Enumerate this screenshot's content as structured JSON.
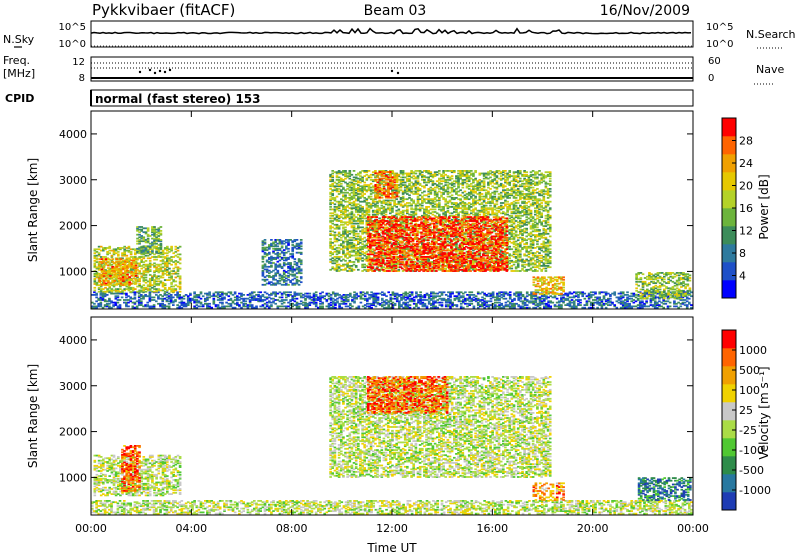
{
  "header": {
    "station": "Pykkvibaer (fitACF)",
    "beam": "Beam 03",
    "date": "16/Nov/2009"
  },
  "strips": {
    "nsky_label": "N.Sky",
    "nsky_ticks": [
      "10^5",
      "10^0"
    ],
    "nsearch_label": "N.Search",
    "nsearch_ticks": [
      "10^5",
      "10^0"
    ],
    "freq_label": "Freq.",
    "freq_unit": "[MHz]",
    "freq_ticks": [
      "12",
      "8"
    ],
    "nave_label": "Nave",
    "nave_ticks": [
      "60",
      "0"
    ],
    "cpid_label": "CPID",
    "cpid_text": "normal (fast stereo) 153"
  },
  "chart_data": [
    {
      "type": "heatmap",
      "panel": "power",
      "ylabel": "Slant Range [km]",
      "ylim": [
        180,
        4500
      ],
      "y_ticks": [
        "1000",
        "2000",
        "3000",
        "4000"
      ],
      "colorbar_label": "Power [dB]",
      "colorbar_ticks": [
        "4",
        "8",
        "12",
        "16",
        "20",
        "24",
        "28"
      ],
      "colorscale": [
        "#0000ff",
        "#1e50c8",
        "#2e7a9e",
        "#3c8c5a",
        "#6cb43c",
        "#b4d228",
        "#e6c800",
        "#f0a000",
        "#ff6400",
        "#ff0000"
      ],
      "regions": [
        {
          "t0": 0.0,
          "t1": 24.0,
          "r0": 200,
          "r1": 550,
          "level": 0.22
        },
        {
          "t0": 0.1,
          "t1": 3.6,
          "r0": 550,
          "r1": 1550,
          "level": 0.55
        },
        {
          "t0": 0.3,
          "t1": 1.8,
          "r0": 700,
          "r1": 1300,
          "level": 0.75
        },
        {
          "t0": 1.8,
          "t1": 2.8,
          "r0": 1400,
          "r1": 2000,
          "level": 0.4
        },
        {
          "t0": 6.8,
          "t1": 8.4,
          "r0": 700,
          "r1": 1700,
          "level": 0.25
        },
        {
          "t0": 9.5,
          "t1": 18.3,
          "r0": 1000,
          "r1": 3200,
          "level": 0.5
        },
        {
          "t0": 11.0,
          "t1": 16.6,
          "r0": 1000,
          "r1": 2200,
          "level": 0.92
        },
        {
          "t0": 11.3,
          "t1": 12.2,
          "r0": 2600,
          "r1": 3200,
          "level": 0.82
        },
        {
          "t0": 17.6,
          "t1": 18.9,
          "r0": 500,
          "r1": 900,
          "level": 0.68
        },
        {
          "t0": 21.7,
          "t1": 23.9,
          "r0": 400,
          "r1": 1000,
          "level": 0.48
        }
      ]
    },
    {
      "type": "heatmap",
      "panel": "velocity",
      "ylabel": "Slant Range [km]",
      "xlabel": "Time UT",
      "xlim": [
        0,
        24
      ],
      "x_ticks": [
        "00:00",
        "04:00",
        "08:00",
        "12:00",
        "16:00",
        "20:00",
        "00:00"
      ],
      "ylim": [
        180,
        4500
      ],
      "y_ticks": [
        "1000",
        "2000",
        "3000",
        "4000"
      ],
      "colorbar_label": "Velocity [m s⁻¹]",
      "colorbar_ticks": [
        "1000",
        "500",
        "100",
        "25",
        "-25",
        "-100",
        "-500",
        "-1000"
      ],
      "colorscale": [
        "#1e3cb4",
        "#2878a0",
        "#2e8c4a",
        "#50c832",
        "#aadc46",
        "#c8c8c8",
        "#f0d200",
        "#f0a000",
        "#ff6400",
        "#ff0000"
      ],
      "regions": [
        {
          "t0": 0.0,
          "t1": 24.0,
          "r0": 200,
          "r1": 500,
          "level": 0.5
        },
        {
          "t0": 0.1,
          "t1": 3.6,
          "r0": 600,
          "r1": 1500,
          "level": 0.5
        },
        {
          "t0": 1.2,
          "t1": 2.0,
          "r0": 700,
          "r1": 1700,
          "level": 0.85
        },
        {
          "t0": 9.5,
          "t1": 18.3,
          "r0": 1000,
          "r1": 3200,
          "level": 0.5
        },
        {
          "t0": 11.0,
          "t1": 14.2,
          "r0": 2400,
          "r1": 3200,
          "level": 0.85
        },
        {
          "t0": 17.6,
          "t1": 18.9,
          "r0": 500,
          "r1": 900,
          "level": 0.75
        },
        {
          "t0": 21.8,
          "t1": 23.9,
          "r0": 500,
          "r1": 1000,
          "level": 0.18
        }
      ]
    }
  ]
}
